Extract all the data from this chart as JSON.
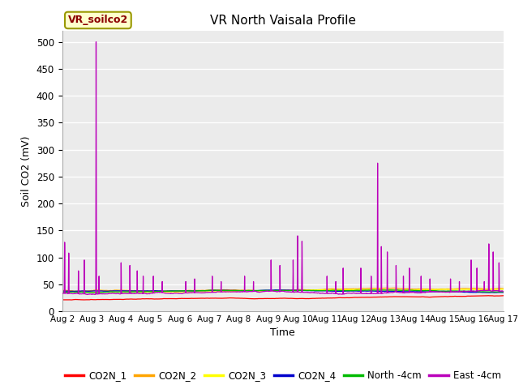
{
  "title": "VR North Vaisala Profile",
  "xlabel": "Time",
  "ylabel": "Soil CO2 (mV)",
  "ylim": [
    0,
    520
  ],
  "yticks": [
    0,
    50,
    100,
    150,
    200,
    250,
    300,
    350,
    400,
    450,
    500
  ],
  "xtick_labels": [
    "Aug 2",
    "Aug 3",
    "Aug 4",
    "Aug 5",
    "Aug 6",
    "Aug 7",
    "Aug 8",
    "Aug 9",
    "Aug 10",
    "Aug 11",
    "Aug 12",
    "Aug 13",
    "Aug 14",
    "Aug 15",
    "Aug 16",
    "Aug 17"
  ],
  "annotation_text": "VR_soilco2",
  "annotation_color": "#8B0000",
  "annotation_bg": "#FFFFCC",
  "annotation_edge": "#999900",
  "legend_entries": [
    {
      "label": "CO2N_1",
      "color": "#FF0000"
    },
    {
      "label": "CO2N_2",
      "color": "#FFA500"
    },
    {
      "label": "CO2N_3",
      "color": "#FFFF00"
    },
    {
      "label": "CO2N_4",
      "color": "#0000CC"
    },
    {
      "label": "North -4cm",
      "color": "#00BB00"
    },
    {
      "label": "East -4cm",
      "color": "#BB00BB"
    }
  ],
  "bg_color": "#EBEBEB",
  "grid_color": "#FFFFFF",
  "series_colors": {
    "CO2N_1": "#FF0000",
    "CO2N_2": "#FFA500",
    "CO2N_3": "#FFFF00",
    "CO2N_4": "#0000CC",
    "North_4cm": "#00BB00",
    "East_4cm": "#BB00BB"
  },
  "n_days": 15,
  "pts_per_day": 288
}
